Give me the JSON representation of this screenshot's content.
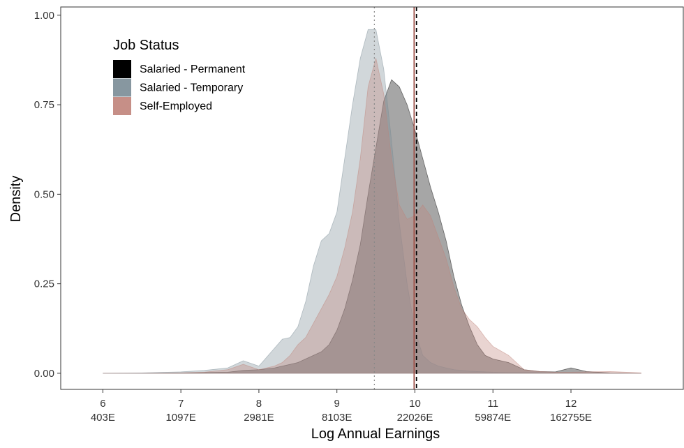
{
  "chart_data": {
    "type": "area",
    "x_label": "Log Annual Earnings",
    "y_label": "Density",
    "legend_title": "Job Status",
    "legend_position": "top-left",
    "opacity": 0.35,
    "x": [
      6.0,
      6.5,
      7.0,
      7.3,
      7.6,
      7.8,
      8.0,
      8.2,
      8.3,
      8.4,
      8.5,
      8.6,
      8.7,
      8.8,
      8.9,
      9.0,
      9.1,
      9.2,
      9.3,
      9.4,
      9.5,
      9.6,
      9.7,
      9.8,
      9.9,
      10.0,
      10.1,
      10.2,
      10.3,
      10.4,
      10.5,
      10.6,
      10.7,
      10.8,
      10.9,
      11.0,
      11.2,
      11.4,
      11.6,
      11.8,
      12.0,
      12.2,
      12.5,
      12.9
    ],
    "series": [
      {
        "name": "Salaried - Permanent",
        "color": "#000000",
        "values": [
          0,
          0,
          0.001,
          0.002,
          0.003,
          0.008,
          0.01,
          0.015,
          0.02,
          0.025,
          0.03,
          0.04,
          0.05,
          0.06,
          0.08,
          0.12,
          0.18,
          0.26,
          0.36,
          0.5,
          0.63,
          0.76,
          0.82,
          0.8,
          0.75,
          0.68,
          0.6,
          0.52,
          0.45,
          0.37,
          0.27,
          0.19,
          0.13,
          0.08,
          0.05,
          0.04,
          0.03,
          0.01,
          0.005,
          0.004,
          0.015,
          0.005,
          0.001,
          0
        ]
      },
      {
        "name": "Salaried - Temporary",
        "color": "#7a8c96",
        "values": [
          0,
          0.001,
          0.004,
          0.008,
          0.015,
          0.035,
          0.02,
          0.07,
          0.095,
          0.1,
          0.13,
          0.2,
          0.3,
          0.37,
          0.39,
          0.45,
          0.6,
          0.75,
          0.88,
          0.96,
          0.96,
          0.85,
          0.65,
          0.42,
          0.25,
          0.12,
          0.05,
          0.03,
          0.02,
          0.015,
          0.01,
          0.008,
          0.006,
          0.005,
          0.004,
          0.003,
          0.002,
          0.002,
          0.002,
          0.002,
          0.002,
          0.001,
          0,
          0
        ]
      },
      {
        "name": "Self-Employed",
        "color": "#c0837a",
        "values": [
          0,
          0,
          0.001,
          0.003,
          0.01,
          0.025,
          0.01,
          0.02,
          0.03,
          0.05,
          0.08,
          0.1,
          0.14,
          0.18,
          0.22,
          0.27,
          0.35,
          0.45,
          0.6,
          0.8,
          0.88,
          0.78,
          0.6,
          0.47,
          0.43,
          0.44,
          0.47,
          0.44,
          0.38,
          0.32,
          0.24,
          0.18,
          0.15,
          0.13,
          0.1,
          0.075,
          0.05,
          0.01,
          0.005,
          0.003,
          0.003,
          0.004,
          0.005,
          0.001
        ]
      }
    ],
    "reference_lines": [
      {
        "x": 9.48,
        "color": "#888888",
        "dash": "dotted"
      },
      {
        "x": 9.99,
        "color": "#a0524a",
        "dash": "solid"
      },
      {
        "x": 10.02,
        "color": "#000000",
        "dash": "dashed"
      }
    ],
    "xlim": [
      5.46,
      13.44
    ],
    "xticks": [
      {
        "value": 6,
        "label": "6\n403E"
      },
      {
        "value": 7,
        "label": "7\n1097E"
      },
      {
        "value": 8,
        "label": "8\n2981E"
      },
      {
        "value": 9,
        "label": "9\n8103E"
      },
      {
        "value": 10,
        "label": "10\n22026E"
      },
      {
        "value": 11,
        "label": "11\n59874E"
      },
      {
        "value": 12,
        "label": "12\n162755E"
      }
    ],
    "ylim": [
      -0.045,
      1.023
    ],
    "yticks": [
      {
        "value": 0,
        "label": "0.00"
      },
      {
        "value": 0.25,
        "label": "0.25"
      },
      {
        "value": 0.5,
        "label": "0.50"
      },
      {
        "value": 0.75,
        "label": "0.75"
      },
      {
        "value": 1,
        "label": "1.00"
      }
    ]
  }
}
